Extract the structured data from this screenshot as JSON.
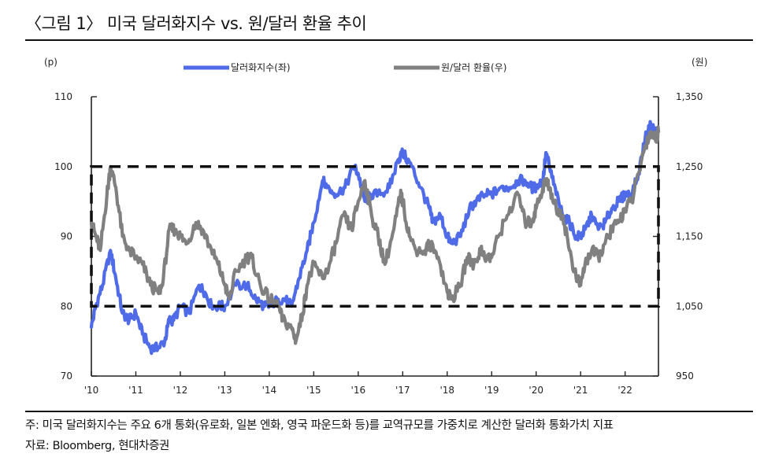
{
  "figure": {
    "title": "〈그림 1〉 미국 달러화지수 vs. 원/달러 환율 추이",
    "note": "주: 미국 달러화지수는 주요 6개 통화(유로화, 일본 엔화, 영국 파운드화 등)를 교역규모를 가중치로 계산한 달러화 통화가치 지표",
    "source": "자료: Bloomberg, 현대차증권"
  },
  "chart_data": {
    "type": "line",
    "left_axis": {
      "unit": "(p)",
      "ylim": [
        70,
        110
      ],
      "ticks": [
        "70",
        "80",
        "90",
        "100",
        "110"
      ]
    },
    "right_axis": {
      "unit": "(원)",
      "ylim": [
        950,
        1350
      ],
      "ticks": [
        "950",
        "1,050",
        "1,150",
        "1,250",
        "1,350"
      ]
    },
    "x_axis": {
      "xlim": [
        2010,
        2022.75
      ],
      "tick_labels": [
        "'10",
        "'11",
        "'12",
        "'13",
        "'14",
        "'15",
        "'16",
        "'17",
        "'18",
        "'19",
        "'20",
        "'21",
        "'22"
      ]
    },
    "box": {
      "x": [
        2010,
        2022.75
      ],
      "y_left": [
        80,
        100
      ]
    },
    "grid": false,
    "legend_position": "top",
    "series": [
      {
        "name": "달러화지수(좌)",
        "axis": "left",
        "color": "#4f6be8",
        "x": [
          2010.0,
          2010.1,
          2010.25,
          2010.43,
          2010.55,
          2010.7,
          2010.85,
          2011.0,
          2011.15,
          2011.33,
          2011.5,
          2011.65,
          2011.75,
          2011.85,
          2012.0,
          2012.2,
          2012.42,
          2012.55,
          2012.7,
          2012.9,
          2013.0,
          2013.25,
          2013.5,
          2013.7,
          2013.9,
          2014.0,
          2014.2,
          2014.35,
          2014.5,
          2014.67,
          2014.85,
          2015.0,
          2015.2,
          2015.3,
          2015.5,
          2015.7,
          2015.9,
          2016.0,
          2016.15,
          2016.3,
          2016.5,
          2016.7,
          2016.9,
          2017.0,
          2017.2,
          2017.4,
          2017.6,
          2017.67,
          2017.85,
          2018.0,
          2018.1,
          2018.3,
          2018.5,
          2018.65,
          2018.85,
          2019.0,
          2019.2,
          2019.4,
          2019.6,
          2019.75,
          2019.9,
          2020.0,
          2020.15,
          2020.22,
          2020.3,
          2020.45,
          2020.6,
          2020.75,
          2020.9,
          2021.0,
          2021.1,
          2021.25,
          2021.4,
          2021.55,
          2021.7,
          2021.85,
          2022.0,
          2022.15,
          2022.3,
          2022.45,
          2022.58,
          2022.68,
          2022.75
        ],
        "values": [
          77,
          80,
          83,
          88,
          84,
          79,
          78,
          79,
          76,
          74,
          74,
          75,
          78,
          78,
          80,
          79,
          83,
          82,
          80,
          80,
          80,
          83,
          83,
          81,
          80,
          80,
          81,
          81,
          80,
          84,
          88,
          92,
          98,
          97,
          96,
          97,
          100,
          99,
          95,
          96,
          96,
          97,
          101,
          102,
          100,
          97,
          94,
          92,
          93,
          90,
          89,
          90,
          94,
          95,
          96,
          96,
          97,
          97,
          98,
          98,
          97,
          97,
          98,
          102,
          100,
          96,
          93,
          92,
          90,
          90,
          91,
          93,
          91,
          92,
          94,
          95,
          96,
          96,
          99,
          104,
          106,
          105,
          105
        ]
      },
      {
        "name": "원/달러 환율(우)",
        "axis": "right",
        "color": "#808080",
        "x": [
          2010.0,
          2010.1,
          2010.2,
          2010.35,
          2010.43,
          2010.55,
          2010.7,
          2010.85,
          2011.0,
          2011.15,
          2011.33,
          2011.5,
          2011.6,
          2011.75,
          2011.9,
          2012.0,
          2012.15,
          2012.35,
          2012.5,
          2012.7,
          2012.85,
          2013.0,
          2013.1,
          2013.25,
          2013.5,
          2013.6,
          2013.8,
          2014.0,
          2014.2,
          2014.3,
          2014.5,
          2014.6,
          2014.75,
          2014.85,
          2015.0,
          2015.2,
          2015.35,
          2015.5,
          2015.67,
          2015.85,
          2016.0,
          2016.15,
          2016.3,
          2016.45,
          2016.6,
          2016.8,
          2016.95,
          2017.0,
          2017.15,
          2017.3,
          2017.5,
          2017.6,
          2017.8,
          2018.0,
          2018.1,
          2018.3,
          2018.45,
          2018.6,
          2018.75,
          2018.9,
          2019.0,
          2019.15,
          2019.35,
          2019.6,
          2019.75,
          2019.9,
          2020.0,
          2020.15,
          2020.22,
          2020.3,
          2020.45,
          2020.6,
          2020.75,
          2020.9,
          2021.0,
          2021.1,
          2021.25,
          2021.4,
          2021.55,
          2021.7,
          2021.85,
          2022.0,
          2022.15,
          2022.3,
          2022.45,
          2022.58,
          2022.68,
          2022.75
        ],
        "values": [
          1170,
          1150,
          1130,
          1210,
          1250,
          1220,
          1150,
          1130,
          1120,
          1110,
          1080,
          1070,
          1080,
          1160,
          1160,
          1150,
          1140,
          1170,
          1160,
          1130,
          1110,
          1080,
          1060,
          1100,
          1120,
          1120,
          1080,
          1060,
          1050,
          1030,
          1020,
          1000,
          1040,
          1080,
          1110,
          1090,
          1110,
          1140,
          1180,
          1160,
          1200,
          1230,
          1180,
          1150,
          1110,
          1160,
          1210,
          1200,
          1150,
          1130,
          1130,
          1140,
          1120,
          1070,
          1060,
          1080,
          1120,
          1110,
          1130,
          1120,
          1120,
          1150,
          1180,
          1210,
          1170,
          1170,
          1190,
          1220,
          1230,
          1220,
          1190,
          1180,
          1130,
          1090,
          1080,
          1110,
          1130,
          1120,
          1140,
          1160,
          1170,
          1190,
          1200,
          1240,
          1280,
          1300,
          1290,
          1300
        ]
      }
    ]
  }
}
